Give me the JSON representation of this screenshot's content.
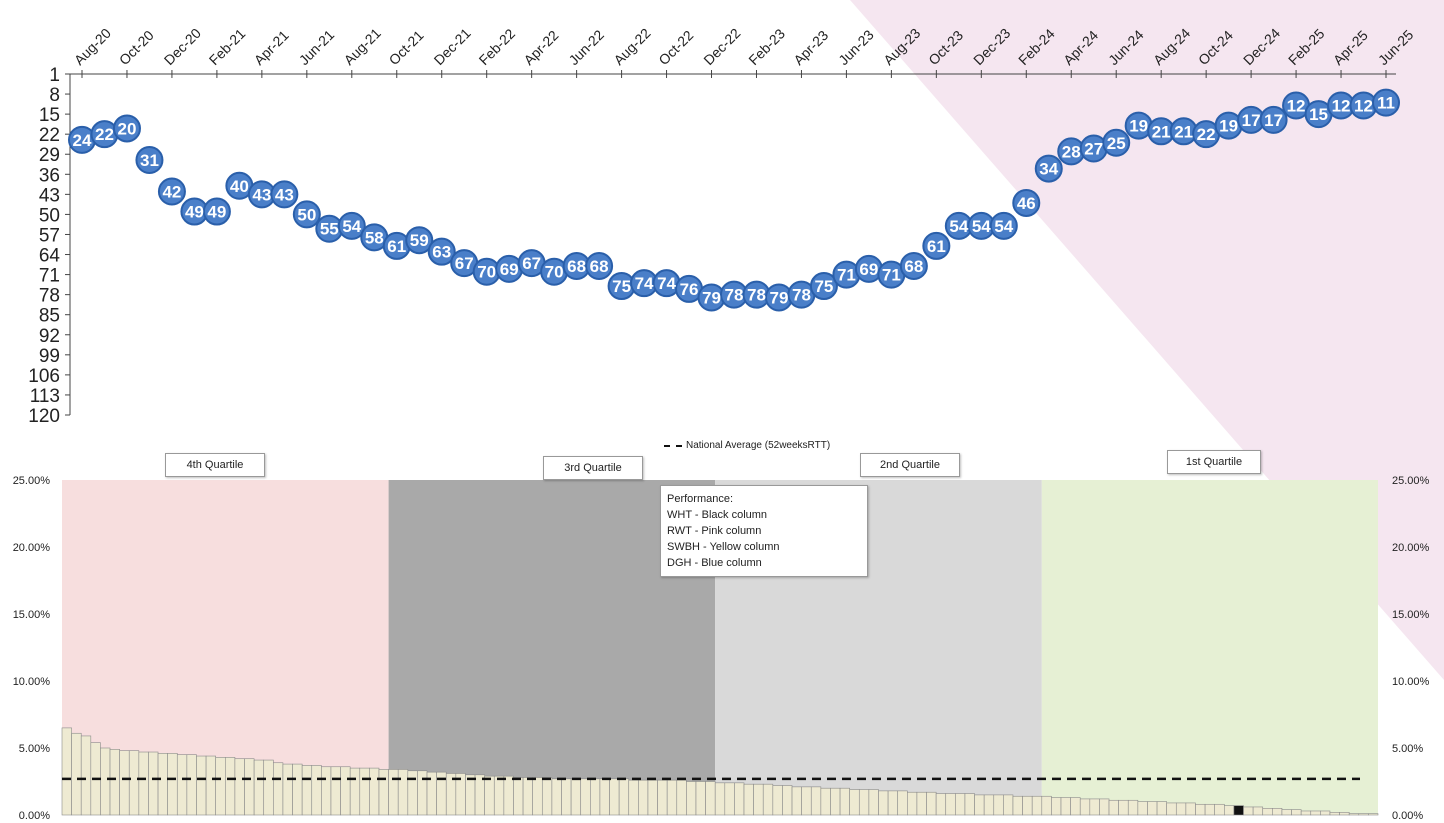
{
  "colors": {
    "marker_fill": "#4a7fc9",
    "marker_stroke": "#2a5faa",
    "background_triangle": "#f5e6f0",
    "quartile4_bg": "#f7dede",
    "quartile3_bg": "#a9a9a9",
    "quartile2_bg": "#d9d9d9",
    "quartile1_bg": "#e6f0d4",
    "bar_fill": "#eeead2",
    "bar_stroke": "#8a8a8a",
    "highlight_bar": "#111111",
    "average_line": "#111111"
  },
  "chart_data": [
    {
      "type": "line",
      "x": [
        "Aug-20",
        "Sep-20",
        "Oct-20",
        "Nov-20",
        "Dec-20",
        "Jan-21",
        "Feb-21",
        "Mar-21",
        "Apr-21",
        "May-21",
        "Jun-21",
        "Jul-21",
        "Aug-21",
        "Sep-21",
        "Oct-21",
        "Nov-21",
        "Dec-21",
        "Jan-22",
        "Feb-22",
        "Mar-22",
        "Apr-22",
        "May-22",
        "Jun-22",
        "Jul-22",
        "Aug-22",
        "Sep-22",
        "Oct-22",
        "Nov-22",
        "Dec-22",
        "Jan-23",
        "Feb-23",
        "Mar-23",
        "Apr-23",
        "May-23",
        "Jun-23",
        "Jul-23",
        "Aug-23",
        "Sep-23",
        "Oct-23",
        "Nov-23",
        "Dec-23",
        "Jan-24",
        "Feb-24",
        "Mar-24",
        "Apr-24",
        "May-24",
        "Jun-24",
        "Jul-24",
        "Aug-24",
        "Sep-24",
        "Oct-24",
        "Nov-24",
        "Dec-24",
        "Jan-25",
        "Feb-25",
        "Mar-25",
        "Apr-25",
        "May-25",
        "Jun-25"
      ],
      "x_tick_labels": [
        "Aug-20",
        "Oct-20",
        "Dec-20",
        "Feb-21",
        "Apr-21",
        "Jun-21",
        "Aug-21",
        "Oct-21",
        "Dec-21",
        "Feb-22",
        "Apr-22",
        "Jun-22",
        "Aug-22",
        "Oct-22",
        "Dec-22",
        "Feb-23",
        "Apr-23",
        "Jun-23",
        "Aug-23",
        "Oct-23",
        "Dec-23",
        "Feb-24",
        "Apr-24",
        "Jun-24",
        "Aug-24",
        "Oct-24",
        "Dec-24",
        "Feb-25",
        "Apr-25",
        "Jun-25"
      ],
      "series": [
        {
          "values": [
            24,
            22,
            20,
            31,
            42,
            49,
            49,
            40,
            43,
            43,
            50,
            55,
            54,
            58,
            61,
            59,
            63,
            67,
            70,
            69,
            67,
            70,
            68,
            68,
            75,
            74,
            74,
            76,
            79,
            78,
            78,
            79,
            78,
            75,
            71,
            69,
            71,
            68,
            61,
            54,
            54,
            54,
            46,
            34,
            28,
            27,
            25,
            19,
            21,
            21,
            22,
            19,
            17,
            17,
            12,
            15,
            12,
            12,
            11
          ]
        }
      ],
      "y_tick_labels": [
        "1",
        "8",
        "15",
        "22",
        "29",
        "36",
        "43",
        "50",
        "57",
        "64",
        "71",
        "78",
        "85",
        "92",
        "99",
        "106",
        "113",
        "120"
      ],
      "ylim": [
        1,
        120
      ],
      "y_inverted": true
    },
    {
      "type": "bar",
      "values": [
        6.5,
        6.1,
        5.9,
        5.4,
        5.0,
        4.9,
        4.8,
        4.8,
        4.7,
        4.7,
        4.6,
        4.6,
        4.5,
        4.5,
        4.4,
        4.4,
        4.3,
        4.3,
        4.2,
        4.2,
        4.1,
        4.1,
        3.9,
        3.8,
        3.8,
        3.7,
        3.7,
        3.6,
        3.6,
        3.6,
        3.5,
        3.5,
        3.5,
        3.4,
        3.4,
        3.4,
        3.3,
        3.3,
        3.2,
        3.2,
        3.1,
        3.1,
        3.0,
        3.0,
        2.9,
        2.9,
        2.9,
        2.8,
        2.8,
        2.8,
        2.8,
        2.7,
        2.7,
        2.7,
        2.7,
        2.7,
        2.7,
        2.7,
        2.7,
        2.6,
        2.6,
        2.6,
        2.6,
        2.6,
        2.6,
        2.5,
        2.5,
        2.5,
        2.4,
        2.4,
        2.4,
        2.3,
        2.3,
        2.3,
        2.2,
        2.2,
        2.1,
        2.1,
        2.1,
        2.0,
        2.0,
        2.0,
        1.9,
        1.9,
        1.9,
        1.8,
        1.8,
        1.8,
        1.7,
        1.7,
        1.7,
        1.6,
        1.6,
        1.6,
        1.6,
        1.5,
        1.5,
        1.5,
        1.5,
        1.4,
        1.4,
        1.4,
        1.4,
        1.3,
        1.3,
        1.3,
        1.2,
        1.2,
        1.2,
        1.1,
        1.1,
        1.1,
        1.0,
        1.0,
        1.0,
        0.9,
        0.9,
        0.9,
        0.8,
        0.8,
        0.8,
        0.7,
        0.7,
        0.6,
        0.6,
        0.5,
        0.5,
        0.4,
        0.4,
        0.3,
        0.3,
        0.3,
        0.2,
        0.2,
        0.1,
        0.1,
        0.1
      ],
      "highlight_index": 122,
      "average": 2.7,
      "y_tick_labels": [
        "25.00%",
        "20.00%",
        "15.00%",
        "10.00%",
        "5.00%",
        "0.00%"
      ],
      "ylim": [
        0,
        25
      ],
      "legend": "National Average (52weeksRTT)",
      "quartiles": [
        {
          "label": "4th Quartile",
          "start": 0,
          "end": 34
        },
        {
          "label": "3rd Quartile",
          "start": 34,
          "end": 68
        },
        {
          "label": "2nd Quartile",
          "start": 68,
          "end": 102
        },
        {
          "label": "1st Quartile",
          "start": 102,
          "end": 137
        }
      ]
    }
  ],
  "performance_box": {
    "title": "Performance:",
    "lines": [
      "WHT - Black column",
      "RWT - Pink column",
      "SWBH - Yellow column",
      "DGH - Blue column"
    ]
  },
  "legend": {
    "label": "National Average (52weeksRTT)"
  }
}
